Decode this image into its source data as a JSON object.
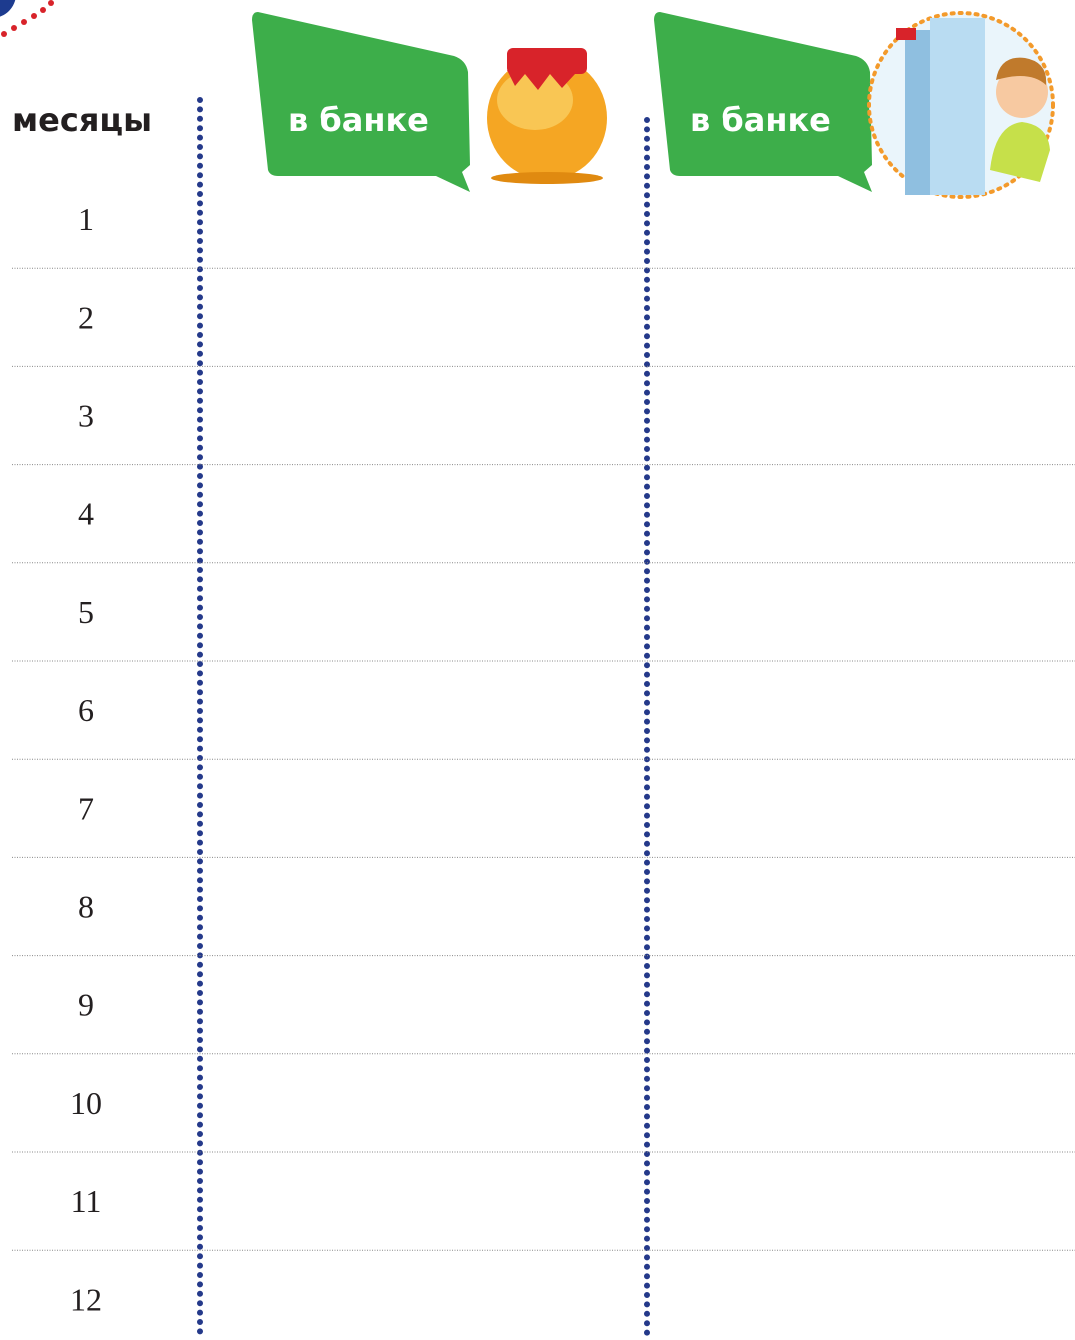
{
  "header": {
    "months": "месяцы",
    "column_1": "в банке",
    "column_2": "в банке"
  },
  "rows": [
    1,
    2,
    3,
    4,
    5,
    6,
    7,
    8,
    9,
    10,
    11,
    12
  ]
}
